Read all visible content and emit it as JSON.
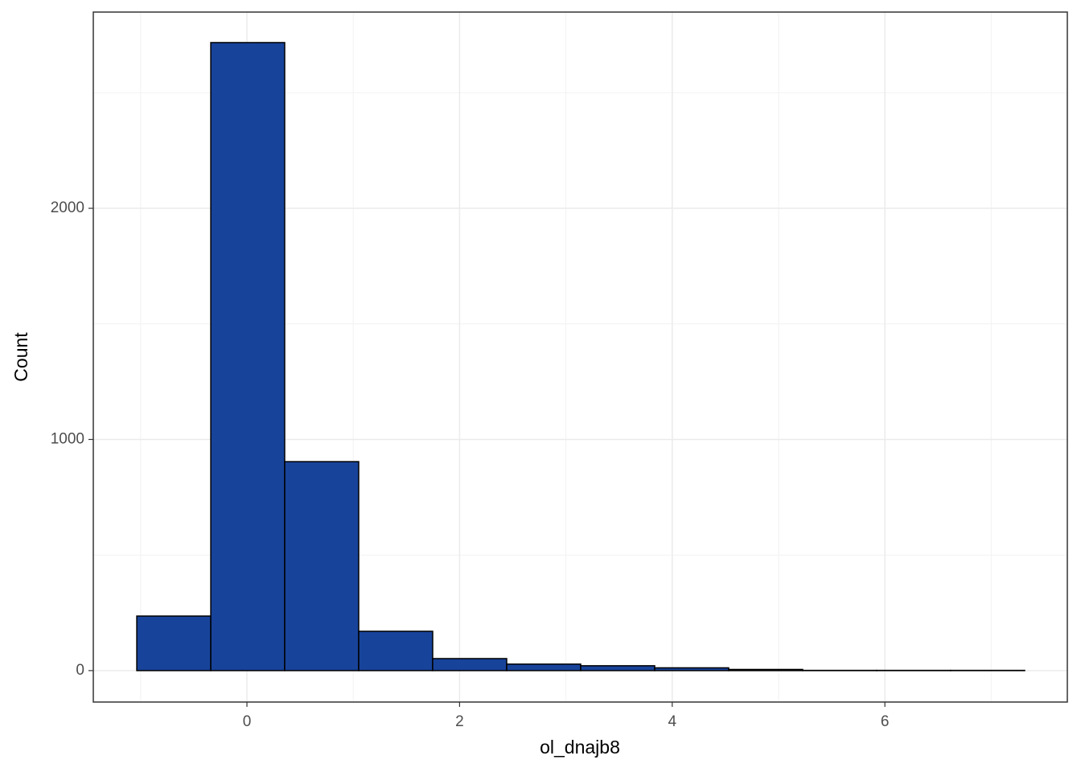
{
  "chart_data": {
    "type": "histogram",
    "x_label": "ol_dnajb8",
    "y_label": "Count",
    "bins": [
      -1.036,
      -0.34,
      0.355,
      1.051,
      1.747,
      2.443,
      3.139,
      3.835,
      4.531,
      5.227,
      5.923,
      6.619,
      7.315
    ],
    "values": [
      236,
      2717,
      904,
      170,
      52,
      28,
      21,
      12,
      5,
      1,
      1,
      1
    ],
    "color": "#18439a",
    "edge_color": "#000000",
    "xlim": [
      -1.445,
      7.716
    ],
    "xticks": [
      0,
      2,
      4,
      6
    ],
    "xminor": [
      -1,
      1,
      3,
      5,
      7
    ],
    "ylim": [
      -136,
      2849
    ],
    "yticks": [
      0,
      1000,
      2000
    ],
    "yminor": [
      500,
      1500,
      2500
    ],
    "grid": true
  }
}
